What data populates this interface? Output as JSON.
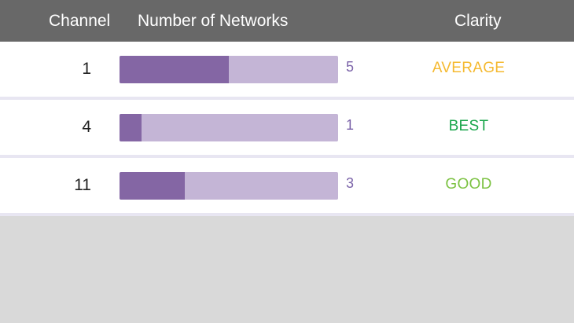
{
  "header": {
    "channel_label": "Channel",
    "networks_label": "Number of Networks",
    "clarity_label": "Clarity"
  },
  "bar_max": 10,
  "colors": {
    "header_bg": "#686868",
    "bar_track": "#c4b5d6",
    "bar_fill": "#8466a4",
    "count_text": "#7a62a8",
    "average": "#f5b92f",
    "best": "#1aa64b",
    "good": "#7cc242"
  },
  "rows": [
    {
      "channel": "1",
      "count": "5",
      "count_value": 5,
      "clarity": "AVERAGE",
      "clarity_color": "#f5b92f"
    },
    {
      "channel": "4",
      "count": "1",
      "count_value": 1,
      "clarity": "BEST",
      "clarity_color": "#1aa64b"
    },
    {
      "channel": "11",
      "count": "3",
      "count_value": 3,
      "clarity": "GOOD",
      "clarity_color": "#7cc242"
    }
  ]
}
